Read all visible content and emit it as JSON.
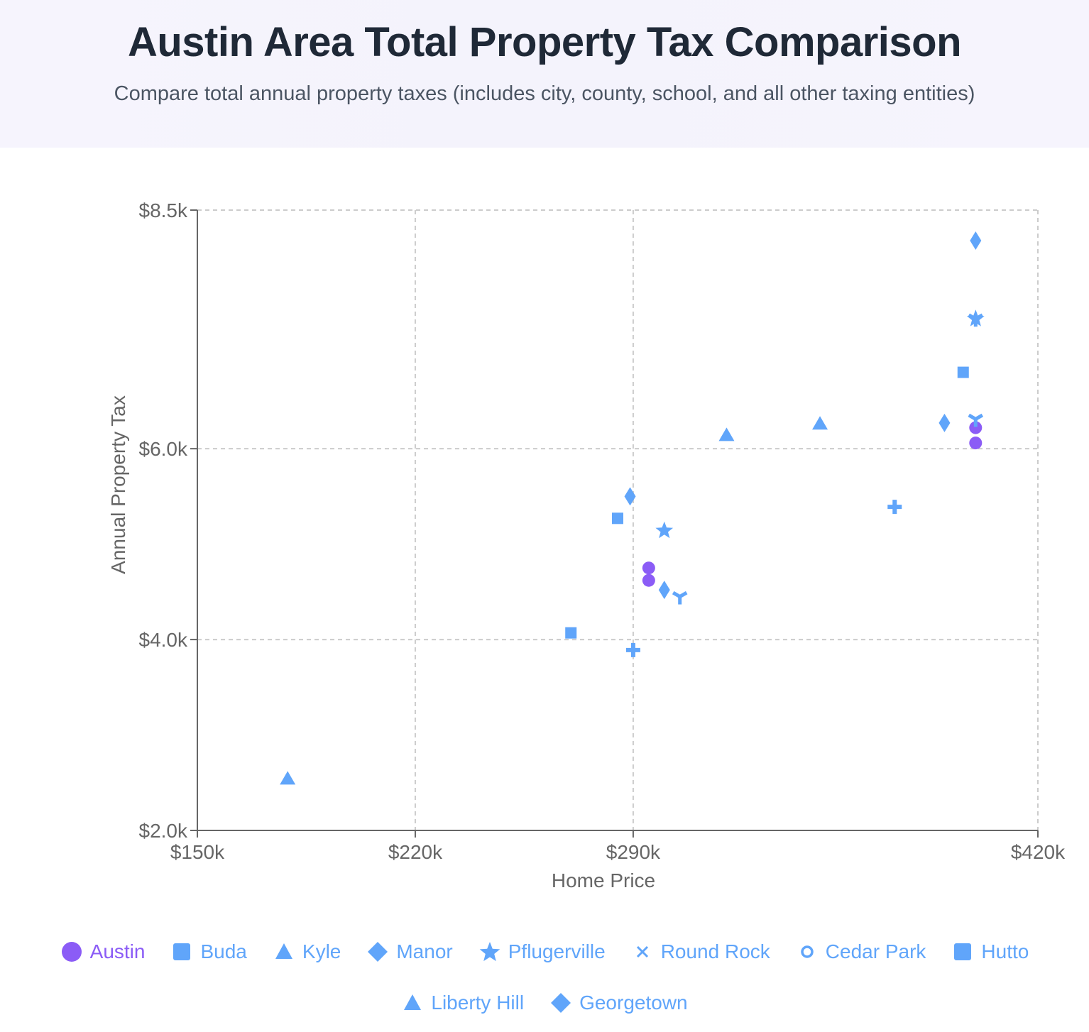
{
  "header": {
    "title": "Austin Area Total Property Tax Comparison",
    "subtitle": "Compare total annual property taxes (includes city, county, school, and all other taxing entities)"
  },
  "colors": {
    "purple": "#8b5cf6",
    "blue": "#60a5fa",
    "grid": "#cccccc",
    "axis": "#666666"
  },
  "chart_data": {
    "type": "scatter",
    "title": "",
    "xlabel": "Home Price",
    "ylabel": "Annual Property Tax",
    "xlim": [
      150000,
      420000
    ],
    "ylim": [
      2000,
      8500
    ],
    "x_ticks": [
      150000,
      220000,
      290000,
      420000
    ],
    "x_tick_labels": [
      "$150k",
      "$220k",
      "$290k",
      "$420k"
    ],
    "y_ticks": [
      2000,
      4000,
      6000,
      8500
    ],
    "y_tick_labels": [
      "$2.0k",
      "$4.0k",
      "$6.0k",
      "$8.5k"
    ],
    "grid": true,
    "legend_position": "bottom",
    "series": [
      {
        "name": "Austin",
        "color": "#8b5cf6",
        "marker": "circle",
        "points": [
          [
            295000,
            4750
          ],
          [
            295000,
            4620
          ],
          [
            400000,
            6220
          ],
          [
            400000,
            6060
          ]
        ]
      },
      {
        "name": "Buda",
        "color": "#60a5fa",
        "marker": "square",
        "points": [
          [
            270000,
            4070
          ],
          [
            285000,
            5270
          ]
        ]
      },
      {
        "name": "Kyle",
        "color": "#60a5fa",
        "marker": "triangle",
        "points": [
          [
            179000,
            2540
          ],
          [
            320000,
            6140
          ],
          [
            350000,
            6260
          ]
        ]
      },
      {
        "name": "Manor",
        "color": "#60a5fa",
        "marker": "thin-diamond",
        "points": [
          [
            289000,
            5500
          ],
          [
            300000,
            4520
          ],
          [
            390000,
            6270
          ],
          [
            400000,
            8180
          ]
        ]
      },
      {
        "name": "Pflugerville",
        "color": "#60a5fa",
        "marker": "star",
        "points": [
          [
            300000,
            5140
          ],
          [
            400000,
            7360
          ]
        ]
      },
      {
        "name": "Round Rock",
        "color": "#60a5fa",
        "marker": "wye",
        "points": [
          [
            305000,
            4450
          ],
          [
            400000,
            6310
          ],
          [
            400000,
            7360
          ]
        ]
      },
      {
        "name": "Cedar Park",
        "color": "#60a5fa",
        "marker": "cross",
        "points": [
          [
            290000,
            3890
          ],
          [
            374000,
            5390
          ]
        ]
      },
      {
        "name": "Hutto",
        "color": "#60a5fa",
        "marker": "square",
        "points": [
          [
            396000,
            6800
          ]
        ]
      },
      {
        "name": "Liberty Hill",
        "color": "#60a5fa",
        "marker": "triangle",
        "points": []
      },
      {
        "name": "Georgetown",
        "color": "#60a5fa",
        "marker": "diamond",
        "points": []
      }
    ]
  },
  "legend": [
    {
      "label": "Austin",
      "icon": "circle",
      "color": "#8b5cf6"
    },
    {
      "label": "Buda",
      "icon": "square",
      "color": "#60a5fa"
    },
    {
      "label": "Kyle",
      "icon": "triangle",
      "color": "#60a5fa"
    },
    {
      "label": "Manor",
      "icon": "diamond",
      "color": "#60a5fa"
    },
    {
      "label": "Pflugerville",
      "icon": "star",
      "color": "#60a5fa"
    },
    {
      "label": "Round Rock",
      "icon": "cross-x",
      "color": "#60a5fa"
    },
    {
      "label": "Cedar Park",
      "icon": "ring",
      "color": "#60a5fa"
    },
    {
      "label": "Hutto",
      "icon": "square",
      "color": "#60a5fa"
    },
    {
      "label": "Liberty Hill",
      "icon": "triangle",
      "color": "#60a5fa"
    },
    {
      "label": "Georgetown",
      "icon": "diamond",
      "color": "#60a5fa"
    }
  ]
}
